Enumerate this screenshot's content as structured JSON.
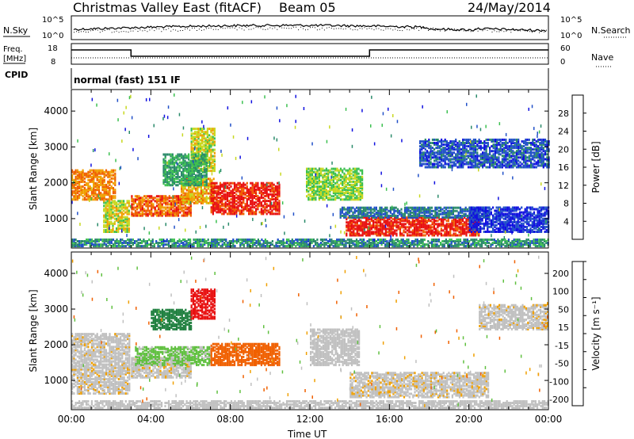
{
  "header": {
    "station": "Christmas Valley East (fitACF)",
    "beam": "Beam 05",
    "date": "24/May/2014"
  },
  "side_labels": {
    "nsky": "N.Sky",
    "freq_line1": "Freq.",
    "freq_line2": "[MHz]",
    "cpid": "CPID",
    "nsearch": "N.Search",
    "nave": "Nave"
  },
  "strip_ticks": {
    "noise_left": [
      "10^5",
      "10^0"
    ],
    "noise_right": [
      "10^5",
      "10^0"
    ],
    "freq_left": [
      "18",
      "8"
    ],
    "freq_right": [
      "60",
      "0"
    ]
  },
  "cpid_text": "normal (fast) 151 IF",
  "colors": {
    "power_scale": [
      "#1010e0",
      "#2050c8",
      "#2a8a6a",
      "#3cc050",
      "#c8d820",
      "#f0a000",
      "#f06000",
      "#e81010"
    ],
    "velocity_scale": [
      "#e81010",
      "#f06000",
      "#f0a000",
      "#c0c0c0",
      "#c0c0c0",
      "#60c040",
      "#208040",
      "#2030c0"
    ]
  },
  "chart_data": [
    {
      "type": "heatmap",
      "ylabel": "Slant Range [km]",
      "yticks": [
        "1000",
        "2000",
        "3000",
        "4000"
      ],
      "ylim": [
        180,
        4600
      ],
      "xlim": [
        0,
        24
      ],
      "colorbar": {
        "label": "Power [dB]",
        "ticks": [
          "4",
          "8",
          "12",
          "16",
          "20",
          "24",
          "28"
        ]
      },
      "regions": [
        {
          "t0": 0.0,
          "t1": 2.2,
          "r0": 1500,
          "r1": 2350,
          "value": 24
        },
        {
          "t0": 1.6,
          "t1": 2.9,
          "r0": 600,
          "r1": 1500,
          "value": 18
        },
        {
          "t0": 3.0,
          "t1": 6.0,
          "r0": 1050,
          "r1": 1600,
          "value": 26
        },
        {
          "t0": 5.5,
          "t1": 7.2,
          "r0": 1400,
          "r1": 2100,
          "value": 22
        },
        {
          "t0": 7.0,
          "t1": 10.5,
          "r0": 1100,
          "r1": 2000,
          "value": 30
        },
        {
          "t0": 6.0,
          "t1": 7.2,
          "r0": 2300,
          "r1": 3500,
          "value": 18
        },
        {
          "t0": 4.6,
          "t1": 6.8,
          "r0": 1900,
          "r1": 2800,
          "value": 12
        },
        {
          "t0": 11.8,
          "t1": 14.6,
          "r0": 1500,
          "r1": 2400,
          "value": 16
        },
        {
          "t0": 13.8,
          "t1": 20.5,
          "r0": 500,
          "r1": 1000,
          "value": 30
        },
        {
          "t0": 13.5,
          "t1": 21.0,
          "r0": 1000,
          "r1": 1300,
          "value": 8
        },
        {
          "t0": 20.0,
          "t1": 24.0,
          "r0": 600,
          "r1": 1300,
          "value": 4
        },
        {
          "t0": 17.5,
          "t1": 24.0,
          "r0": 2400,
          "r1": 3200,
          "value": 6
        },
        {
          "t0": 0.0,
          "t1": 24.0,
          "r0": 200,
          "r1": 420,
          "value": 10
        }
      ]
    },
    {
      "type": "heatmap",
      "ylabel": "Slant Range [km]",
      "yticks": [
        "1000",
        "2000",
        "3000",
        "4000"
      ],
      "ylim": [
        180,
        4600
      ],
      "xlim": [
        0,
        24
      ],
      "xticks": [
        "00:00",
        "04:00",
        "08:00",
        "12:00",
        "16:00",
        "20:00",
        "00:00"
      ],
      "xlabel": "Time UT",
      "colorbar": {
        "label": "Velocity [m s⁻¹]",
        "ticks": [
          "200",
          "100",
          "50",
          "15",
          "-15",
          "-50",
          "-100",
          "-200"
        ]
      },
      "regions": [
        {
          "t0": 0.0,
          "t1": 2.9,
          "r0": 600,
          "r1": 2300,
          "value": 0
        },
        {
          "t0": 3.0,
          "t1": 6.0,
          "r0": 1050,
          "r1": 1600,
          "value": 0
        },
        {
          "t0": 3.2,
          "t1": 7.0,
          "r0": 1400,
          "r1": 1900,
          "value": 60
        },
        {
          "t0": 7.0,
          "t1": 10.5,
          "r0": 1400,
          "r1": 2000,
          "value": -70
        },
        {
          "t0": 4.0,
          "t1": 6.0,
          "r0": 2400,
          "r1": 2950,
          "value": 180
        },
        {
          "t0": 6.0,
          "t1": 7.2,
          "r0": 2700,
          "r1": 3550,
          "value": -200
        },
        {
          "t0": 12.0,
          "t1": 14.5,
          "r0": 1400,
          "r1": 2400,
          "value": 5
        },
        {
          "t0": 14.0,
          "t1": 21.0,
          "r0": 500,
          "r1": 1200,
          "value": 0
        },
        {
          "t0": 20.5,
          "t1": 24.0,
          "r0": 2400,
          "r1": 3100,
          "value": 0
        },
        {
          "t0": 0.0,
          "t1": 24.0,
          "r0": 200,
          "r1": 420,
          "value": 30
        }
      ]
    }
  ]
}
